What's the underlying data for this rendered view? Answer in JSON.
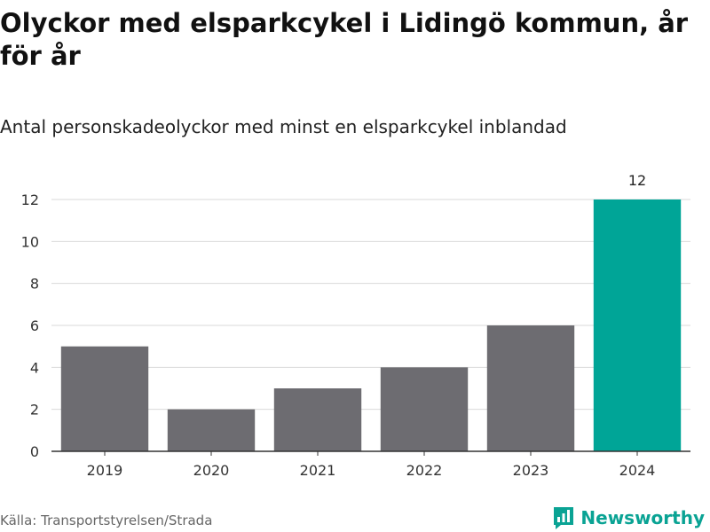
{
  "title": "Olyckor med elsparkcykel i Lidingö kommun, år för år",
  "subtitle": "Antal personskadeolyckor med minst en elsparkcykel inblandad",
  "source": "Källa: Transportstyrelsen/Strada",
  "brand": "Newsworthy",
  "colors": {
    "bar_default": "#6d6c71",
    "bar_highlight": "#00a597",
    "grid": "#d9d9d9",
    "axis": "#333333",
    "brand": "#0aa394"
  },
  "chart_data": {
    "type": "bar",
    "categories": [
      "2019",
      "2020",
      "2021",
      "2022",
      "2023",
      "2024"
    ],
    "values": [
      5,
      2,
      3,
      4,
      6,
      12
    ],
    "highlight_index": 5,
    "value_labels": [
      null,
      null,
      null,
      null,
      null,
      "12"
    ],
    "yticks": [
      0,
      2,
      4,
      6,
      8,
      10,
      12
    ],
    "ylim": [
      0,
      12
    ],
    "grid": true
  }
}
